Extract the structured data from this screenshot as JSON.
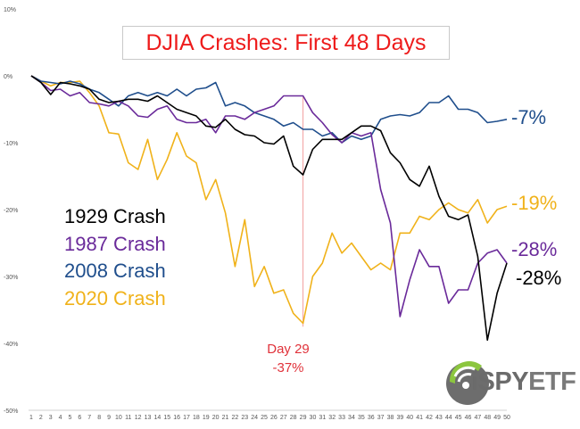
{
  "chart_data": {
    "type": "line",
    "title": "DJIA Crashes: First 48 Days",
    "x": [
      1,
      2,
      3,
      4,
      5,
      6,
      7,
      8,
      9,
      10,
      11,
      12,
      13,
      14,
      15,
      16,
      17,
      18,
      19,
      20,
      21,
      22,
      23,
      24,
      25,
      26,
      27,
      28,
      29,
      30,
      31,
      32,
      33,
      34,
      35,
      36,
      37,
      38,
      39,
      40,
      41,
      42,
      43,
      44,
      45,
      46,
      47,
      48,
      49,
      50
    ],
    "xlim": [
      1,
      50
    ],
    "ylim": [
      -50,
      10
    ],
    "y_ticks": [
      "10%",
      "0%",
      "-10%",
      "-20%",
      "-30%",
      "-40%",
      "-50%"
    ],
    "grid": false,
    "legend_position": "left",
    "series": [
      {
        "name": "1929 Crash",
        "color": "#000000",
        "end_label": "-28%",
        "values": [
          0,
          -1,
          -2.8,
          -1,
          -1.2,
          -1.5,
          -2,
          -3.5,
          -4,
          -3.8,
          -3.5,
          -3.5,
          -3.8,
          -3,
          -4,
          -5,
          -5.5,
          -6,
          -7.5,
          -7.7,
          -6.5,
          -8,
          -8.8,
          -9,
          -10,
          -10.2,
          -9,
          -13.5,
          -14.8,
          -11,
          -9.5,
          -9.5,
          -9.5,
          -8.5,
          -7.5,
          -7.5,
          -8.2,
          -11.5,
          -13,
          -15.5,
          -16.5,
          -13.5,
          -18,
          -21,
          -21.5,
          -20.8,
          -27,
          -39.5,
          -32.5,
          -28
        ]
      },
      {
        "name": "1987 Crash",
        "color": "#6a2a9a",
        "end_label": "-28%",
        "values": [
          0,
          -1,
          -2.2,
          -2,
          -3,
          -2.5,
          -4,
          -4.2,
          -4.5,
          -3.8,
          -4.5,
          -6,
          -6.2,
          -5,
          -4.5,
          -6.5,
          -7,
          -7,
          -6.5,
          -8.5,
          -6,
          -6,
          -6.5,
          -5.5,
          -5,
          -4.5,
          -3,
          -3,
          -3,
          -5.5,
          -7,
          -8.8,
          -10,
          -8.5,
          -9,
          -8.5,
          -17,
          -22,
          -36,
          -30.5,
          -26,
          -28.5,
          -28.5,
          -34,
          -32,
          -32,
          -28,
          -26.5,
          -26,
          -28
        ]
      },
      {
        "name": "2008 Crash",
        "color": "#1f4e8c",
        "end_label": "-7%",
        "values": [
          0,
          -0.8,
          -1,
          -1.2,
          -0.8,
          -1.2,
          -2,
          -2.5,
          -3.5,
          -4.5,
          -3,
          -2.5,
          -3,
          -2.5,
          -3,
          -2,
          -3,
          -2,
          -1.8,
          -1,
          -4.5,
          -4,
          -4.5,
          -5.5,
          -6,
          -6.5,
          -7.5,
          -7,
          -8,
          -8,
          -9,
          -8.5,
          -10,
          -9,
          -9.5,
          -9,
          -6.5,
          -6,
          -5.8,
          -6,
          -5.5,
          -4,
          -4,
          -3,
          -5,
          -5,
          -5.5,
          -7,
          -6.8,
          -6.5
        ]
      },
      {
        "name": "2020 Crash",
        "color": "#f0b21a",
        "end_label": "-19%",
        "values": [
          0,
          -0.8,
          -1.5,
          -1,
          -1,
          -0.8,
          -2.5,
          -4.5,
          -8.5,
          -8.7,
          -13,
          -14,
          -9.5,
          -15.5,
          -12.5,
          -8.5,
          -12,
          -13,
          -18.5,
          -15.5,
          -20.5,
          -28.5,
          -21.5,
          -31.5,
          -28.5,
          -32.5,
          -32,
          -35.5,
          -37,
          -30,
          -28,
          -23.5,
          -26.5,
          -25,
          -27,
          -29,
          -28,
          -29,
          -23.5,
          -23.5,
          -21,
          -21.5,
          -20,
          -19,
          -20,
          -20.5,
          -18.5,
          -22,
          -20,
          -19.5
        ]
      }
    ],
    "annotation": {
      "x": 29,
      "line1": "Day 29",
      "line2": "-37%",
      "color": "#e0323a"
    }
  },
  "logo": {
    "text_main": "iSPY",
    "text_etf": "ETF"
  }
}
